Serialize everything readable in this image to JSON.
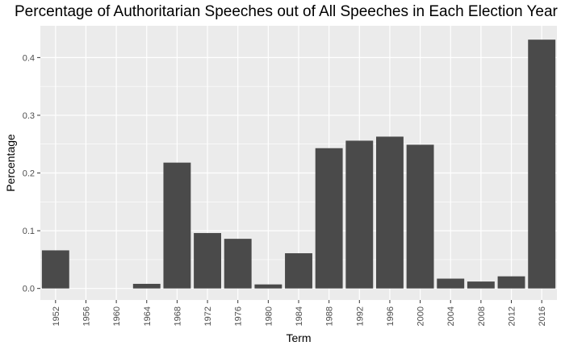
{
  "chart_data": {
    "type": "bar",
    "title": "Percentage of Authoritarian Speeches out of All Speeches in Each Election Year",
    "xlabel": "Term",
    "ylabel": "Percentage",
    "categories": [
      "1952",
      "1956",
      "1960",
      "1964",
      "1968",
      "1972",
      "1976",
      "1980",
      "1984",
      "1988",
      "1992",
      "1996",
      "2000",
      "2004",
      "2008",
      "2012",
      "2016"
    ],
    "values": [
      0.066,
      0,
      0,
      0.008,
      0.218,
      0.096,
      0.086,
      0.007,
      0.061,
      0.243,
      0.256,
      0.263,
      0.249,
      0.017,
      0.012,
      0.021,
      0.431
    ],
    "y_ticks": [
      "0.0",
      "0.1",
      "0.2",
      "0.3",
      "0.4"
    ],
    "ylim": [
      -0.02,
      0.455
    ],
    "grid": true,
    "colors": {
      "bar": "#4a4a4a",
      "panel": "#ebebeb",
      "grid": "#ffffff"
    }
  }
}
